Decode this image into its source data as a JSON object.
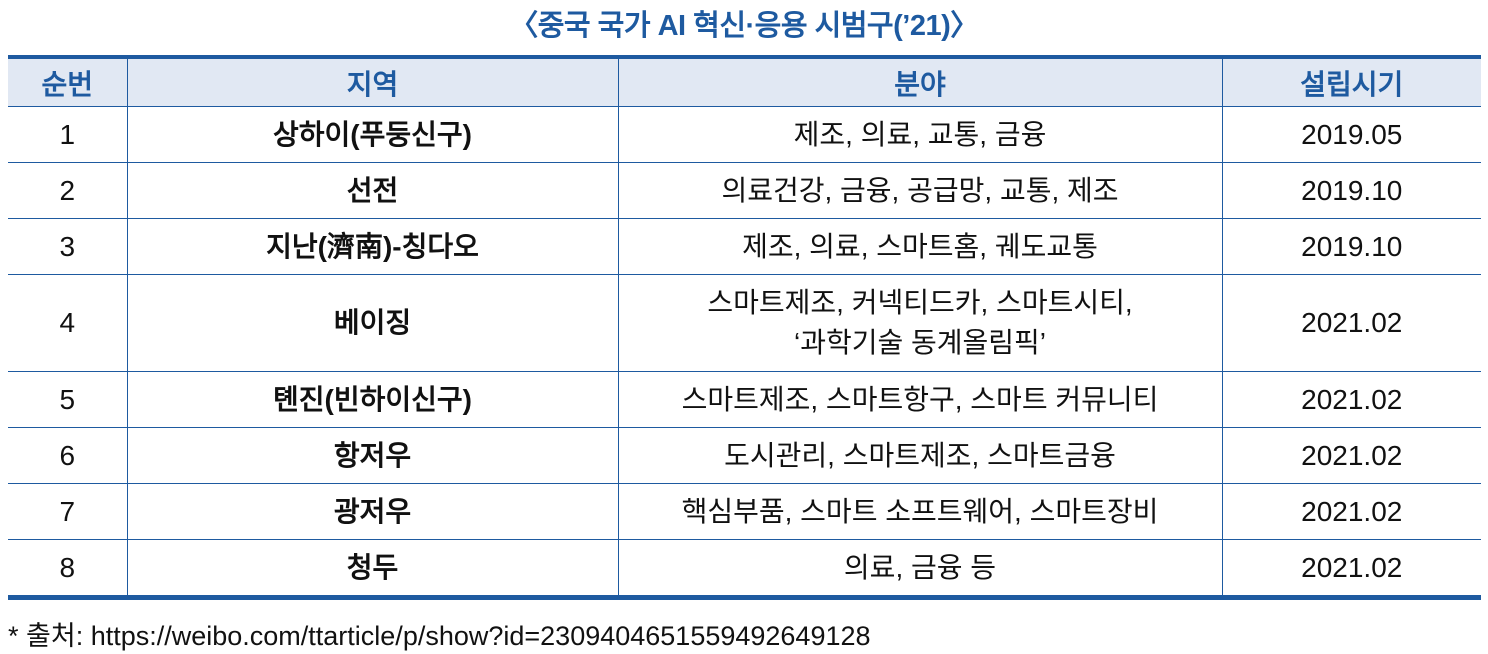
{
  "title": "〈중국 국가 AI 혁신·응용 시범구(’21)〉",
  "table": {
    "headers": [
      "순번",
      "지역",
      "분야",
      "설립시기"
    ],
    "rows": [
      {
        "no": "1",
        "region": "상하이(푸둥신구)",
        "fields": [
          "제조, 의료, 교통, 금융"
        ],
        "date": "2019.05"
      },
      {
        "no": "2",
        "region": "선전",
        "fields": [
          "의료건강, 금융, 공급망, 교통, 제조"
        ],
        "date": "2019.10"
      },
      {
        "no": "3",
        "region": "지난(濟南)-칭다오",
        "fields": [
          "제조, 의료, 스마트홈, 궤도교통"
        ],
        "date": "2019.10"
      },
      {
        "no": "4",
        "region": "베이징",
        "fields": [
          "스마트제조, 커넥티드카, 스마트시티,",
          "‘과학기술 동계올림픽’"
        ],
        "date": "2021.02"
      },
      {
        "no": "5",
        "region": "톈진(빈하이신구)",
        "fields": [
          "스마트제조, 스마트항구, 스마트 커뮤니티"
        ],
        "date": "2021.02"
      },
      {
        "no": "6",
        "region": "항저우",
        "fields": [
          "도시관리, 스마트제조, 스마트금융"
        ],
        "date": "2021.02"
      },
      {
        "no": "7",
        "region": "광저우",
        "fields": [
          "핵심부품, 스마트 소프트웨어, 스마트장비"
        ],
        "date": "2021.02"
      },
      {
        "no": "8",
        "region": "청두",
        "fields": [
          "의료, 금융 등"
        ],
        "date": "2021.02"
      }
    ]
  },
  "source": "* 출처: https://weibo.com/ttarticle/p/show?id=2309404651559492649128",
  "colors": {
    "accent": "#1e5aa0",
    "header_bg": "#e1e8f3"
  }
}
